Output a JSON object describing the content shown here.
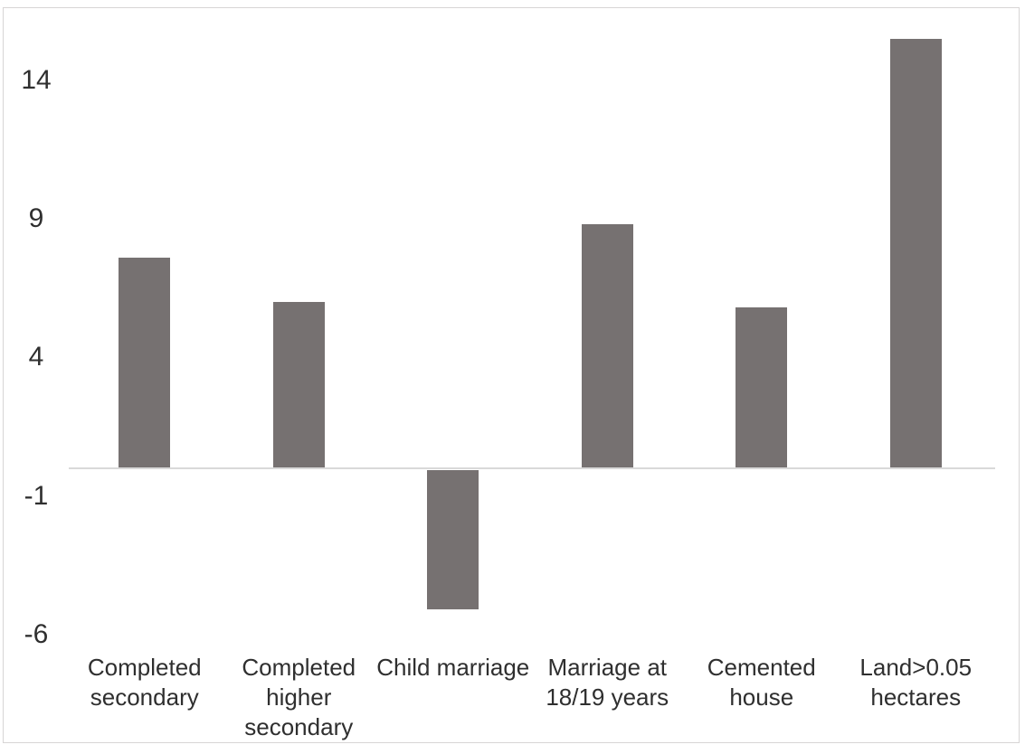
{
  "chart_data": {
    "type": "bar",
    "title": "",
    "xlabel": "",
    "ylabel": "",
    "categories": [
      "Completed\nsecondary",
      "Completed\nhigher\nsecondary",
      "Child marriage",
      "Marriage at\n18/19 years",
      "Cemented\nhouse",
      "Land>0.05\nhectares"
    ],
    "values": [
      7.6,
      6.0,
      -5.1,
      8.8,
      5.8,
      15.5
    ],
    "ytick_labels": [
      "14",
      "9",
      "4",
      "-1",
      "-6"
    ],
    "ytick_values": [
      14,
      9,
      4,
      -1,
      -6
    ],
    "ylim": [
      -6,
      16.5
    ],
    "grid": false,
    "legend": "none",
    "colors": {
      "bar_fill": "#767171",
      "axis_line": "#D9D9D9",
      "text": "#2F2F2F",
      "chart_border": "#D7D5D5",
      "background": "#FFFFFF"
    }
  }
}
